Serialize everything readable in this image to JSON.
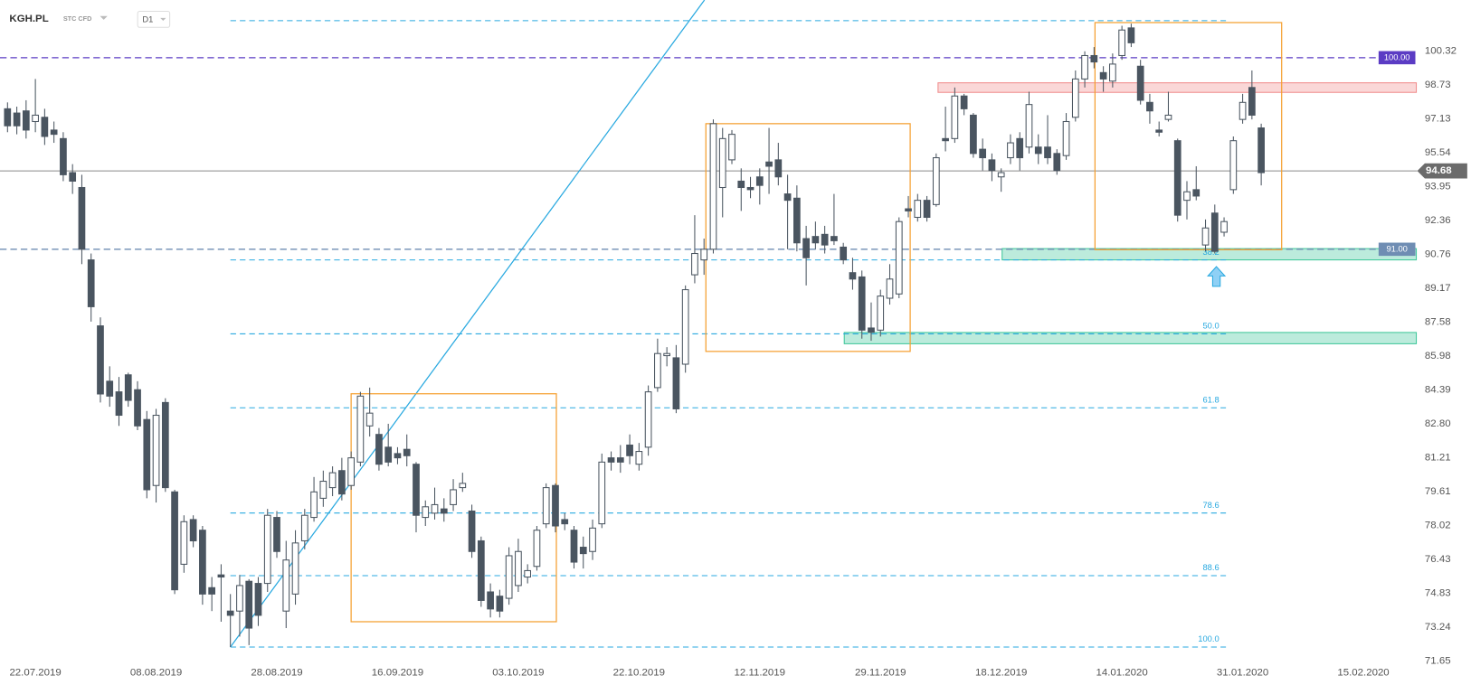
{
  "chart_data": {
    "type": "candlestick",
    "symbol": "KGH.PL",
    "instrument": "STC CFD",
    "timeframe": "D1",
    "up_color": "#ffffff",
    "down_color": "#4a5560",
    "edge_color": "#4a5560",
    "open": [
      97.6,
      97.4,
      97.5,
      97.0,
      97.2,
      96.6,
      96.2,
      94.6,
      93.9,
      90.5,
      87.4,
      84.8,
      84.3,
      85.1,
      84.4,
      83.0,
      79.9,
      83.8,
      79.6,
      76.2,
      78.3,
      77.8,
      75.1,
      75.7,
      74.0,
      74.0,
      75.4,
      75.3,
      75.3,
      78.4,
      74.0,
      74.8,
      77.3,
      78.4,
      79.3,
      79.8,
      80.6,
      79.9,
      81.0,
      82.7,
      82.3,
      81.7,
      81.4,
      81.6,
      80.9,
      78.4,
      78.6,
      78.8,
      79.0,
      79.8,
      78.7,
      77.3,
      74.9,
      74.7,
      74.6,
      75.2,
      75.6,
      76.1,
      78.1,
      79.9,
      78.3,
      77.8,
      77.0,
      76.8,
      78.1,
      81.2,
      81.2,
      81.8,
      80.9,
      81.7,
      84.5,
      86.0,
      85.9,
      85.6,
      89.8,
      90.5,
      91.0,
      93.9,
      95.2,
      94.2,
      93.9,
      94.4,
      95.1,
      95.2,
      93.6,
      93.4,
      91.5,
      91.6,
      91.7,
      91.6,
      91.1,
      89.9,
      89.7,
      87.3,
      87.2,
      88.7,
      88.9,
      92.9,
      92.5,
      93.3,
      93.1,
      96.2,
      96.2,
      98.2,
      97.3,
      95.7,
      95.2,
      94.4,
      95.3,
      96.2,
      95.8,
      95.8,
      95.8,
      95.5,
      95.4,
      97.2,
      99.0,
      100.1,
      99.3,
      98.9,
      100.1,
      101.4,
      99.6,
      97.9,
      96.6,
      97.1,
      96.1,
      93.3,
      93.8,
      91.2,
      92.7,
      91.8,
      93.8,
      97.1,
      98.6,
      96.7
    ],
    "high": [
      97.9,
      97.7,
      98.0,
      99.0,
      97.6,
      97.0,
      96.5,
      95.0,
      94.5,
      90.8,
      87.8,
      85.5,
      85.0,
      85.2,
      84.8,
      83.4,
      83.5,
      84.0,
      79.7,
      78.5,
      78.5,
      78.0,
      75.6,
      76.2,
      74.8,
      75.7,
      75.5,
      75.6,
      78.8,
      78.7,
      77.3,
      77.8,
      78.8,
      80.3,
      80.6,
      80.8,
      81.2,
      81.5,
      84.3,
      84.5,
      82.6,
      82.8,
      81.7,
      82.3,
      81.0,
      79.2,
      79.8,
      79.3,
      80.2,
      80.5,
      79.0,
      77.5,
      75.3,
      75.0,
      77.0,
      77.4,
      76.2,
      78.0,
      80.0,
      80.0,
      78.6,
      78.0,
      77.5,
      78.3,
      81.4,
      81.5,
      81.8,
      82.3,
      81.9,
      84.6,
      86.8,
      86.4,
      86.5,
      89.3,
      92.6,
      91.5,
      97.1,
      96.7,
      96.6,
      94.8,
      94.4,
      94.8,
      96.7,
      96.0,
      94.5,
      94.0,
      92.1,
      92.3,
      92.1,
      93.6,
      91.3,
      90.6,
      90.0,
      88.5,
      89.1,
      90.3,
      92.5,
      93.5,
      93.6,
      93.5,
      95.5,
      97.7,
      98.6,
      98.3,
      97.4,
      96.2,
      95.5,
      94.8,
      96.4,
      96.5,
      98.4,
      96.4,
      97.3,
      95.7,
      97.4,
      99.4,
      100.3,
      100.5,
      99.6,
      100.2,
      101.5,
      101.6,
      99.9,
      98.3,
      97.0,
      98.4,
      96.2,
      94.2,
      94.9,
      92.4,
      93.1,
      92.5,
      96.3,
      98.3,
      99.4,
      96.9
    ],
    "low": [
      96.5,
      96.4,
      96.2,
      96.5,
      95.9,
      96.0,
      94.2,
      93.6,
      90.3,
      87.6,
      83.8,
      83.6,
      82.7,
      83.6,
      82.5,
      79.3,
      79.1,
      79.6,
      74.8,
      75.8,
      77.0,
      74.3,
      74.0,
      73.5,
      72.31,
      72.8,
      72.4,
      73.3,
      74.9,
      76.5,
      73.2,
      74.3,
      76.9,
      78.2,
      78.9,
      79.4,
      79.2,
      79.7,
      80.8,
      82.2,
      80.6,
      80.8,
      80.9,
      80.8,
      77.7,
      78.0,
      78.3,
      78.2,
      78.7,
      79.6,
      76.5,
      74.2,
      73.7,
      73.7,
      74.3,
      74.9,
      75.3,
      75.9,
      77.9,
      77.7,
      77.8,
      76.0,
      76.0,
      76.4,
      77.9,
      80.6,
      80.5,
      80.9,
      80.6,
      81.3,
      84.3,
      85.5,
      83.3,
      85.2,
      89.4,
      89.8,
      90.8,
      92.5,
      95.0,
      92.8,
      93.4,
      93.1,
      93.6,
      94.0,
      91.0,
      90.9,
      89.3,
      91.0,
      90.8,
      91.2,
      90.3,
      89.1,
      86.8,
      86.7,
      86.9,
      88.4,
      88.7,
      92.5,
      92.3,
      92.3,
      93.0,
      95.6,
      96.0,
      97.3,
      95.3,
      94.7,
      94.2,
      93.7,
      95.0,
      94.7,
      95.5,
      95.0,
      95.0,
      94.5,
      95.2,
      97.0,
      98.6,
      99.5,
      98.4,
      98.6,
      99.9,
      100.5,
      97.8,
      96.9,
      96.3,
      97.0,
      92.3,
      92.4,
      93.3,
      90.9,
      90.8,
      91.6,
      93.6,
      96.9,
      97.1,
      94.0
    ],
    "close": [
      96.8,
      96.8,
      96.6,
      97.3,
      96.3,
      96.4,
      94.5,
      94.2,
      91.0,
      88.3,
      84.2,
      84.1,
      83.2,
      83.9,
      82.7,
      79.7,
      83.2,
      79.8,
      75.0,
      78.2,
      77.3,
      74.8,
      74.8,
      75.6,
      73.8,
      75.2,
      73.2,
      73.8,
      78.5,
      76.8,
      76.4,
      77.2,
      78.5,
      79.6,
      80.1,
      80.5,
      79.5,
      81.2,
      84.1,
      83.3,
      80.9,
      81.0,
      81.2,
      81.3,
      78.5,
      78.9,
      79.0,
      78.6,
      79.7,
      80.0,
      76.8,
      74.5,
      74.1,
      74.0,
      76.6,
      76.8,
      75.9,
      77.8,
      79.8,
      78.0,
      78.1,
      76.3,
      76.7,
      77.9,
      81.0,
      81.0,
      81.0,
      81.3,
      81.5,
      84.3,
      86.1,
      86.1,
      83.5,
      89.1,
      90.8,
      91.0,
      96.9,
      96.2,
      96.4,
      93.9,
      93.8,
      94.0,
      94.9,
      94.4,
      93.3,
      91.3,
      90.6,
      91.3,
      91.2,
      91.4,
      90.5,
      89.6,
      87.2,
      87.1,
      88.8,
      89.6,
      92.3,
      92.8,
      93.3,
      92.5,
      95.3,
      96.1,
      98.2,
      97.6,
      95.5,
      95.3,
      94.7,
      94.6,
      96.0,
      95.3,
      97.8,
      95.5,
      95.3,
      94.7,
      97.0,
      99.0,
      100.1,
      99.8,
      99.0,
      99.7,
      101.3,
      100.7,
      98.0,
      97.5,
      96.5,
      97.3,
      92.6,
      93.7,
      93.5,
      92.0,
      90.9,
      92.3,
      96.1,
      97.9,
      97.3,
      94.6
    ],
    "xlim": [
      -0.81,
      151.7
    ],
    "xticks": [
      {
        "value": 3,
        "label": "22.07.2019"
      },
      {
        "value": 16,
        "label": "08.08.2019"
      },
      {
        "value": 29,
        "label": "28.08.2019"
      },
      {
        "value": 42,
        "label": "16.09.2019"
      },
      {
        "value": 55,
        "label": "03.10.2019"
      },
      {
        "value": 68,
        "label": "22.10.2019"
      },
      {
        "value": 81,
        "label": "12.11.2019"
      },
      {
        "value": 94,
        "label": "29.11.2019"
      },
      {
        "value": 107,
        "label": "18.12.2019"
      },
      {
        "value": 120,
        "label": "14.01.2020"
      },
      {
        "value": 133,
        "label": "31.01.2020"
      },
      {
        "value": 146,
        "label": "15.02.2020"
      }
    ],
    "ylim": [
      71.51,
      102.71
    ],
    "yticks": [
      100.32,
      98.73,
      97.13,
      95.54,
      93.95,
      92.36,
      90.76,
      89.17,
      87.58,
      85.98,
      84.39,
      {
        "value": 82.8,
        "label": "82.80"
      },
      81.21,
      79.61,
      78.02,
      76.43,
      74.83,
      73.24,
      71.65
    ],
    "last_price": {
      "value": 94.68,
      "color": "#6b6b6b"
    },
    "levels": [
      {
        "value": 100,
        "label": "100.00",
        "color": "#5b3cc4"
      },
      {
        "value": 91,
        "label": "91.00",
        "color": "#6f8db3"
      }
    ],
    "fib": {
      "high": 101.74,
      "low": 72.31,
      "x": [
        24,
        131.2
      ],
      "color": "#29a9e0",
      "levels": [
        38.2,
        {
          "value": 50,
          "label": "50.0"
        },
        61.8,
        78.6,
        88.6,
        {
          "value": 100,
          "label": "100.0"
        }
      ]
    },
    "trendline": {
      "x": [
        24,
        75.05
      ],
      "y": [
        72.31,
        102.71
      ],
      "color": "#29a9e0"
    },
    "boxes": {
      "color": "#f5a031",
      "items": [
        {
          "x": [
            37,
            59.1
          ],
          "y": [
            73.5,
            84.21
          ]
        },
        {
          "x": [
            75.2,
            97.2
          ],
          "y": [
            86.2,
            96.9
          ]
        },
        {
          "x": [
            117.1,
            137.2
          ],
          "y": [
            90.98,
            101.65
          ]
        }
      ]
    },
    "zones": [
      {
        "x": 100.2,
        "y": [
          98.37,
          98.82
        ],
        "color": "#f08c8c"
      },
      {
        "x": 107.1,
        "y": [
          90.5,
          91.03
        ],
        "color": "#3fc79a"
      },
      {
        "x": 90.1,
        "y": [
          86.56,
          87.09
        ],
        "color": "#3fc79a"
      }
    ]
  }
}
